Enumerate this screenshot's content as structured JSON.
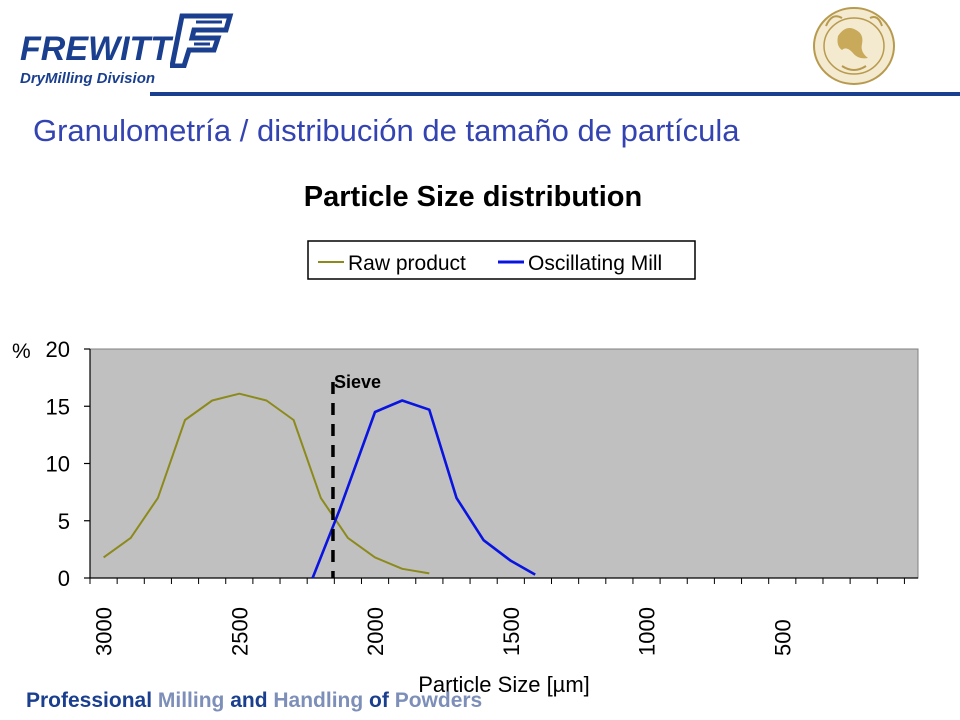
{
  "logo": {
    "brand": "FREWITT",
    "division": "DryMilling Division"
  },
  "slide_title": "Granulometría / distribución de tamaño de partícula",
  "footer": {
    "part1": "Professional",
    "part2": " Milling ",
    "part3": "and",
    "part4": " Handling ",
    "part5": "of",
    "part6": " Powders"
  },
  "colors": {
    "raw": "#8c8a1c",
    "mill": "#0a14e0",
    "plot_bg": "#c0c0c0",
    "title_blue": "#3344b2",
    "brand": "#1b3f8f"
  },
  "chart_data": {
    "type": "line",
    "title": "Particle Size distribution",
    "ylabel": "%",
    "xlabel": "Particle Size [µm]",
    "xlim": [
      3050,
      0
    ],
    "ylim": [
      0,
      20
    ],
    "x_ticks": [
      3000,
      2500,
      2000,
      1500,
      1000,
      500
    ],
    "y_ticks": [
      0,
      5,
      10,
      15,
      20
    ],
    "legend_position": "top",
    "sieve": {
      "label": "Sieve",
      "x": 2155
    },
    "series": [
      {
        "name": "Raw product",
        "color": "#8c8a1c",
        "points": [
          [
            3000,
            1.8
          ],
          [
            2900,
            3.5
          ],
          [
            2800,
            7.0
          ],
          [
            2700,
            13.8
          ],
          [
            2600,
            15.5
          ],
          [
            2500,
            16.1
          ],
          [
            2400,
            15.5
          ],
          [
            2300,
            13.8
          ],
          [
            2200,
            7.0
          ],
          [
            2100,
            3.5
          ],
          [
            2000,
            1.8
          ],
          [
            1900,
            0.8
          ],
          [
            1800,
            0.4
          ]
        ]
      },
      {
        "name": "Oscillating Mill",
        "color": "#0a14e0",
        "points": [
          [
            2230,
            0.0
          ],
          [
            2130,
            6.0
          ],
          [
            2000,
            14.5
          ],
          [
            1900,
            15.5
          ],
          [
            1800,
            14.7
          ],
          [
            1700,
            7.0
          ],
          [
            1600,
            3.3
          ],
          [
            1500,
            1.5
          ],
          [
            1410,
            0.3
          ]
        ]
      }
    ]
  }
}
